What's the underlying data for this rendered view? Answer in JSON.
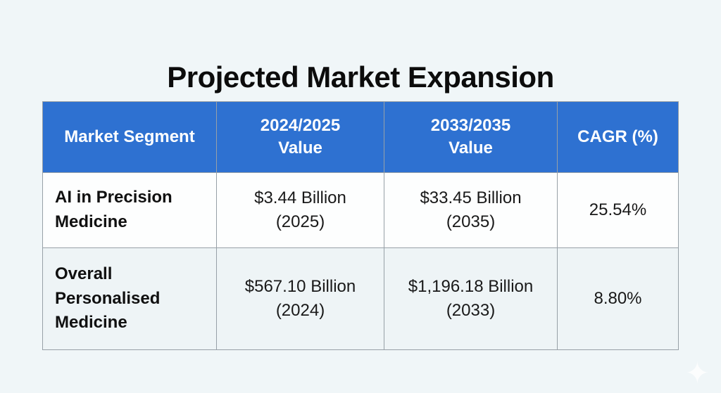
{
  "title": "Projected Market Expansion",
  "table": {
    "headers": [
      "Market Segment",
      "2024/2025\nValue",
      "2033/2035\nValue",
      "CAGR (%)"
    ],
    "rows": [
      {
        "segment": "AI in Precision Medicine",
        "value_near": "$3.44 Billion\n(2025)",
        "value_far": "$33.45 Billion\n(2035)",
        "cagr": "25.54%"
      },
      {
        "segment": "Overall Personalised Medicine",
        "value_near": "$567.10 Billion\n(2024)",
        "value_far": "$1,196.18 Billion\n(2033)",
        "cagr": "8.80%"
      }
    ]
  },
  "icons": {
    "sparkle_glyph": "✦"
  },
  "colors": {
    "page_bg": "#f0f6f8",
    "header_bg": "#2e71d1",
    "header_text": "#ffffff",
    "row_bg": "#fdfefe",
    "row_alt_bg": "#eef4f6",
    "border": "#97a0a7",
    "title_text": "#0c0c0c"
  }
}
